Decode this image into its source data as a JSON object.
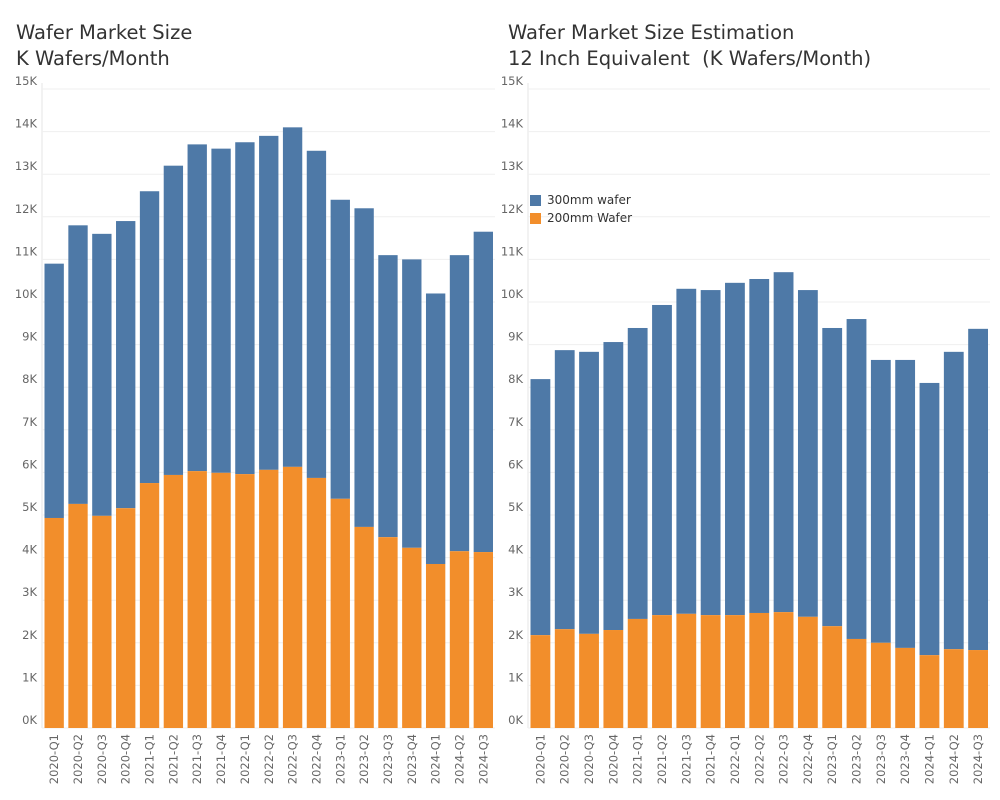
{
  "colors": {
    "s300": "#4e79a7",
    "s200": "#f28e2b"
  },
  "chart_data": [
    {
      "type": "bar",
      "stacked": true,
      "title": "Wafer Market Size",
      "subtitle": "K Wafers/Month",
      "ylabel": "",
      "xlabel": "",
      "ylim": [
        0,
        15
      ],
      "yticks": [
        "0K",
        "1K",
        "2K",
        "3K",
        "4K",
        "5K",
        "6K",
        "7K",
        "8K",
        "9K",
        "10K",
        "11K",
        "12K",
        "13K",
        "14K",
        "15K"
      ],
      "grid": true,
      "categories": [
        "2020-Q1",
        "2020-Q2",
        "2020-Q3",
        "2020-Q4",
        "2021-Q1",
        "2021-Q2",
        "2021-Q3",
        "2021-Q4",
        "2022-Q1",
        "2022-Q2",
        "2022-Q3",
        "2022-Q4",
        "2023-Q1",
        "2023-Q2",
        "2023-Q3",
        "2023-Q4",
        "2024-Q1",
        "2024-Q2",
        "2024-Q3"
      ],
      "series": [
        {
          "name": "200mm Wafer",
          "values": [
            4.93,
            5.26,
            4.98,
            5.16,
            5.75,
            5.94,
            6.03,
            5.99,
            5.96,
            6.06,
            6.13,
            5.87,
            5.38,
            4.72,
            4.48,
            4.23,
            3.85,
            4.15,
            4.13
          ]
        },
        {
          "name": "300mm wafer",
          "values": [
            5.97,
            6.54,
            6.62,
            6.74,
            6.85,
            7.26,
            7.67,
            7.61,
            7.79,
            7.84,
            7.97,
            7.68,
            7.02,
            7.48,
            6.62,
            6.77,
            6.35,
            6.95,
            7.52
          ]
        }
      ]
    },
    {
      "type": "bar",
      "stacked": true,
      "title": "Wafer Market Size Estimation",
      "subtitle": "12 Inch Equivalent  (K Wafers/Month)",
      "ylabel": "",
      "xlabel": "",
      "ylim": [
        0,
        15
      ],
      "yticks": [
        "0K",
        "1K",
        "2K",
        "3K",
        "4K",
        "5K",
        "6K",
        "7K",
        "8K",
        "9K",
        "10K",
        "11K",
        "12K",
        "13K",
        "14K",
        "15K"
      ],
      "grid": true,
      "legend": {
        "placement": "top-left",
        "entries": [
          "300mm wafer",
          "200mm Wafer"
        ]
      },
      "categories": [
        "2020-Q1",
        "2020-Q2",
        "2020-Q3",
        "2020-Q4",
        "2021-Q1",
        "2021-Q2",
        "2021-Q3",
        "2021-Q4",
        "2022-Q1",
        "2022-Q2",
        "2022-Q3",
        "2022-Q4",
        "2023-Q1",
        "2023-Q2",
        "2023-Q3",
        "2023-Q4",
        "2024-Q1",
        "2024-Q2",
        "2024-Q3"
      ],
      "series": [
        {
          "name": "200mm Wafer",
          "values": [
            2.18,
            2.32,
            2.21,
            2.3,
            2.56,
            2.65,
            2.68,
            2.65,
            2.65,
            2.7,
            2.72,
            2.61,
            2.39,
            2.09,
            2.0,
            1.88,
            1.71,
            1.85,
            1.83
          ]
        },
        {
          "name": "300mm wafer",
          "values": [
            6.01,
            6.55,
            6.62,
            6.76,
            6.83,
            7.28,
            7.63,
            7.63,
            7.8,
            7.84,
            7.98,
            7.67,
            7.0,
            7.51,
            6.64,
            6.76,
            6.39,
            6.98,
            7.54
          ]
        }
      ]
    }
  ]
}
